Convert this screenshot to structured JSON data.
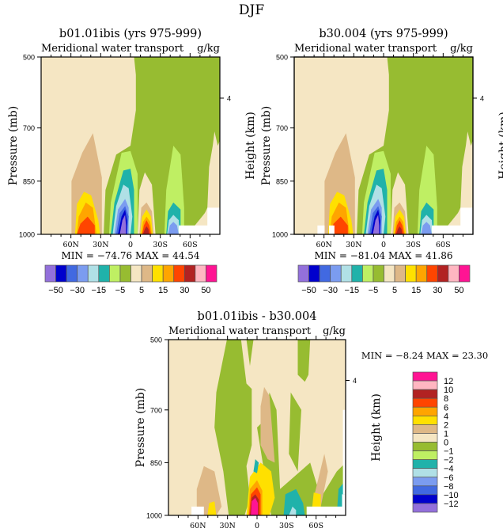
{
  "figure_title": "DJF",
  "chart_data": [
    {
      "type": "heatmap",
      "panel": "b01.01ibis",
      "title": "b01.01ibis (yrs 975-999)",
      "left_string": "Meridional water transport",
      "right_string": "g/kg",
      "xlabel": "",
      "ylabel": "Pressure (mb)",
      "ylabel_right": "Height (km)",
      "x_ticks": [
        "60N",
        "30N",
        "0",
        "30S",
        "60S"
      ],
      "x_tick_values": [
        60,
        30,
        0,
        -30,
        -60
      ],
      "xlim": [
        90,
        -90
      ],
      "y_ticks": [
        "500",
        "700",
        "850",
        "1000"
      ],
      "y_tick_values": [
        500,
        700,
        850,
        1000
      ],
      "ylim": [
        500,
        1000
      ],
      "y_right_ticks": [
        "4"
      ],
      "stats": "MIN = -74.76   MAX = 44.54",
      "min": -74.76,
      "max": 44.54,
      "colorbar": {
        "orientation": "horizontal",
        "levels": [
          -50,
          -40,
          -30,
          -20,
          -15,
          -10,
          -5,
          0,
          5,
          10,
          15,
          20,
          30,
          40,
          50
        ],
        "labels": [
          "-50",
          "-30",
          "-15",
          "-5",
          "5",
          "15",
          "30",
          "50"
        ]
      }
    },
    {
      "type": "heatmap",
      "panel": "b30.004",
      "title": "b30.004 (yrs 975-999)",
      "left_string": "Meridional water transport",
      "right_string": "g/kg",
      "xlabel": "",
      "ylabel": "Pressure (mb)",
      "ylabel_right": "Height (km)",
      "x_ticks": [
        "60N",
        "30N",
        "0",
        "30S",
        "60S"
      ],
      "x_tick_values": [
        60,
        30,
        0,
        -30,
        -60
      ],
      "xlim": [
        90,
        -90
      ],
      "y_ticks": [
        "500",
        "700",
        "850",
        "1000"
      ],
      "y_tick_values": [
        500,
        700,
        850,
        1000
      ],
      "ylim": [
        500,
        1000
      ],
      "y_right_ticks": [
        "4"
      ],
      "stats": "MIN = -81.04   MAX = 41.86",
      "min": -81.04,
      "max": 41.86,
      "colorbar": {
        "orientation": "horizontal",
        "levels": [
          -50,
          -40,
          -30,
          -20,
          -15,
          -10,
          -5,
          0,
          5,
          10,
          15,
          20,
          30,
          40,
          50
        ],
        "labels": [
          "-50",
          "-30",
          "-15",
          "-5",
          "5",
          "15",
          "30",
          "50"
        ]
      }
    },
    {
      "type": "heatmap",
      "panel": "difference",
      "title": "b01.01ibis - b30.004",
      "left_string": "Meridional water transport",
      "right_string": "g/kg",
      "xlabel": "",
      "ylabel": "Pressure (mb)",
      "ylabel_right": "Height (km)",
      "x_ticks": [
        "60N",
        "30N",
        "0",
        "30S",
        "60S"
      ],
      "x_tick_values": [
        60,
        30,
        0,
        -30,
        -60
      ],
      "xlim": [
        90,
        -90
      ],
      "y_ticks": [
        "500",
        "700",
        "850",
        "1000"
      ],
      "y_tick_values": [
        500,
        700,
        850,
        1000
      ],
      "ylim": [
        500,
        1000
      ],
      "y_right_ticks": [
        "4"
      ],
      "stats": "MIN = -8.24   MAX = 23.30",
      "min": -8.24,
      "max": 23.3,
      "colorbar": {
        "orientation": "vertical",
        "levels": [
          12,
          10,
          8,
          6,
          4,
          2,
          1,
          0,
          -1,
          -2,
          -4,
          -6,
          -8,
          -10,
          -12
        ],
        "labels": [
          "12",
          "10",
          "8",
          "6",
          "4",
          "2",
          "1",
          "0",
          "-1",
          "-2",
          "-4",
          "-6",
          "-8",
          "-10",
          "-12"
        ]
      }
    }
  ],
  "palette": [
    "#9370db",
    "#0000cd",
    "#4169e1",
    "#7b9cf0",
    "#b0e0e6",
    "#20b2aa",
    "#bfef63",
    "#97bc31",
    "#f5e6c3",
    "#deb887",
    "#ffe000",
    "#ffa500",
    "#ff4500",
    "#b22222",
    "#ffb6c1",
    "#ff1493"
  ]
}
